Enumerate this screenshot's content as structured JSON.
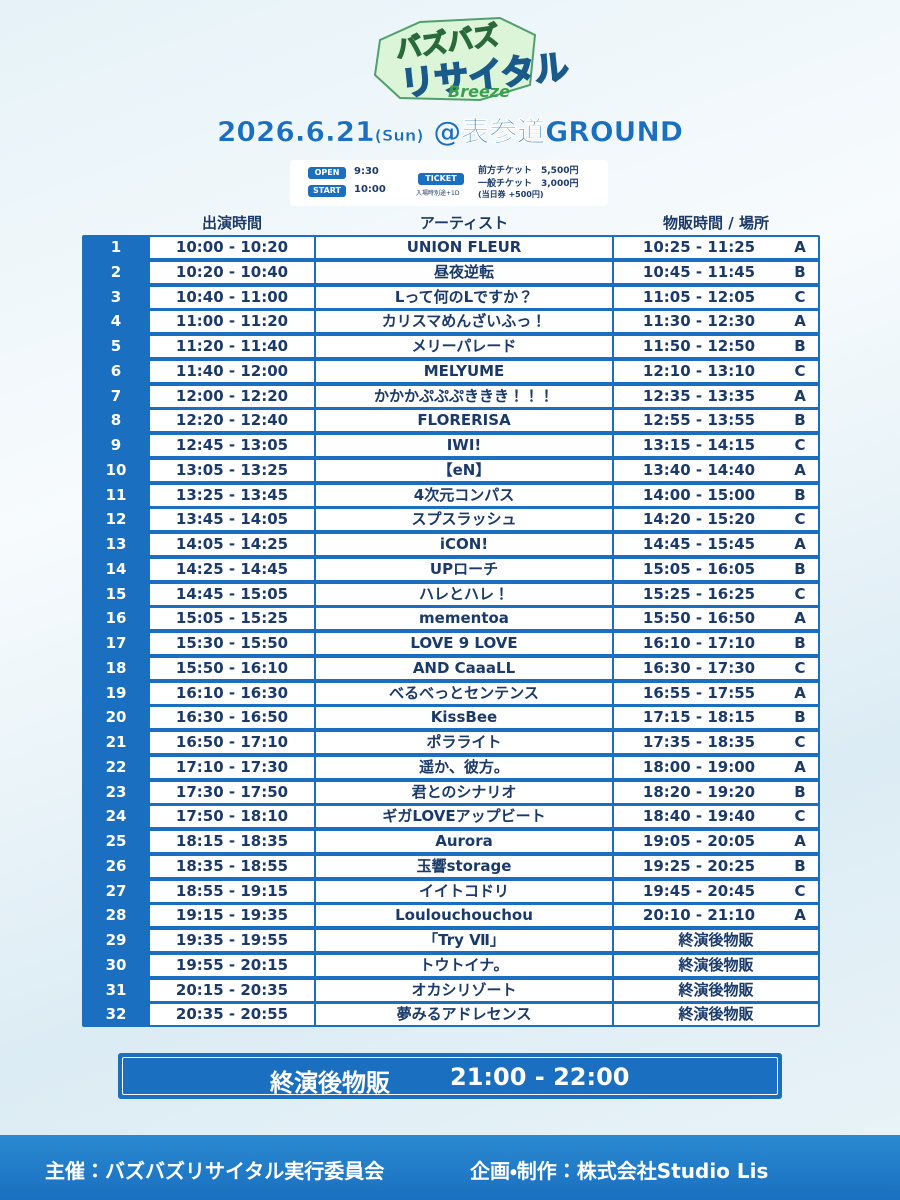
{
  "logo": {
    "title": "バズバズ",
    "subtitle": "リサイタル",
    "tag": "Breeze"
  },
  "event": {
    "date": "2026.6.21",
    "weekday": "(Sun)",
    "venue": "@表参道GROUND"
  },
  "info": {
    "open_label": "OPEN",
    "open_time": "9:30",
    "start_label": "START",
    "start_time": "10:00",
    "ticket_label": "TICKET",
    "ticket_note": "入場時別途+1D",
    "tickets": [
      "前方チケット　5,500円",
      "一般チケット　3,000円",
      "(当日券 +500円)"
    ]
  },
  "table": {
    "headers": [
      "出演時間",
      "アーティスト",
      "物販時間 / 場所"
    ],
    "rows": [
      [
        "1",
        "10:00 - 10:20",
        "UNION FLEUR",
        "10:25 - 11:25",
        "A"
      ],
      [
        "2",
        "10:20 - 10:40",
        "昼夜逆転",
        "10:45 - 11:45",
        "B"
      ],
      [
        "3",
        "10:40 - 11:00",
        "Lって何のLですか？",
        "11:05 - 12:05",
        "C"
      ],
      [
        "4",
        "11:00 - 11:20",
        "カリスマめんざいふっ！",
        "11:30 - 12:30",
        "A"
      ],
      [
        "5",
        "11:20 - 11:40",
        "メリーパレード",
        "11:50 - 12:50",
        "B"
      ],
      [
        "6",
        "11:40 - 12:00",
        "MELYUME",
        "12:10 - 13:10",
        "C"
      ],
      [
        "7",
        "12:00 - 12:20",
        "かかかぷぷぷききき！！！",
        "12:35 - 13:35",
        "A"
      ],
      [
        "8",
        "12:20 - 12:40",
        "FLORERISA",
        "12:55 - 13:55",
        "B"
      ],
      [
        "9",
        "12:45 - 13:05",
        "IWI!",
        "13:15 - 14:15",
        "C"
      ],
      [
        "10",
        "13:05 - 13:25",
        "【eN】",
        "13:40 - 14:40",
        "A"
      ],
      [
        "11",
        "13:25 - 13:45",
        "4次元コンパス",
        "14:00 - 15:00",
        "B"
      ],
      [
        "12",
        "13:45 - 14:05",
        "スプスラッシュ",
        "14:20 - 15:20",
        "C"
      ],
      [
        "13",
        "14:05 - 14:25",
        "iCON!",
        "14:45 - 15:45",
        "A"
      ],
      [
        "14",
        "14:25 - 14:45",
        "UPローチ",
        "15:05 - 16:05",
        "B"
      ],
      [
        "15",
        "14:45 - 15:05",
        "ハレとハレ！",
        "15:25 - 16:25",
        "C"
      ],
      [
        "16",
        "15:05 - 15:25",
        "mementoa",
        "15:50 - 16:50",
        "A"
      ],
      [
        "17",
        "15:30 - 15:50",
        "LOVE 9 LOVE",
        "16:10 - 17:10",
        "B"
      ],
      [
        "18",
        "15:50 - 16:10",
        "AND CaaaLL",
        "16:30 - 17:30",
        "C"
      ],
      [
        "19",
        "16:10 - 16:30",
        "べるべっとセンテンス",
        "16:55 - 17:55",
        "A"
      ],
      [
        "20",
        "16:30 - 16:50",
        "KissBee",
        "17:15 - 18:15",
        "B"
      ],
      [
        "21",
        "16:50 - 17:10",
        "ポラライト",
        "17:35 - 18:35",
        "C"
      ],
      [
        "22",
        "17:10 - 17:30",
        "遥か、彼方。",
        "18:00 - 19:00",
        "A"
      ],
      [
        "23",
        "17:30 - 17:50",
        "君とのシナリオ",
        "18:20 - 19:20",
        "B"
      ],
      [
        "24",
        "17:50 - 18:10",
        "ギガLOVEアップビート",
        "18:40 - 19:40",
        "C"
      ],
      [
        "25",
        "18:15 - 18:35",
        "Aurora",
        "19:05 - 20:05",
        "A"
      ],
      [
        "26",
        "18:35 - 18:55",
        "玉響storage",
        "19:25 - 20:25",
        "B"
      ],
      [
        "27",
        "18:55 - 19:15",
        "イイトコドリ",
        "19:45 - 20:45",
        "C"
      ],
      [
        "28",
        "19:15 - 19:35",
        "Loulouchouchou",
        "20:10 - 21:10",
        "A"
      ],
      [
        "29",
        "19:35 - 19:55",
        "「Try Ⅶ」",
        "終演後物販"
      ],
      [
        "30",
        "19:55 - 20:15",
        "トウトイナ。",
        "終演後物販"
      ],
      [
        "31",
        "20:15 - 20:35",
        "オカシリゾート",
        "終演後物販"
      ],
      [
        "32",
        "20:35 - 20:55",
        "夢みるアドレセンス",
        "終演後物販"
      ]
    ]
  },
  "after_show": {
    "label": "終演後物販",
    "time": "21:00 - 22:00"
  },
  "footer": {
    "organizer": "主催：バズバズリサイタル実行委員会",
    "producer": "企画・制作：株式会社Studio Lis"
  }
}
